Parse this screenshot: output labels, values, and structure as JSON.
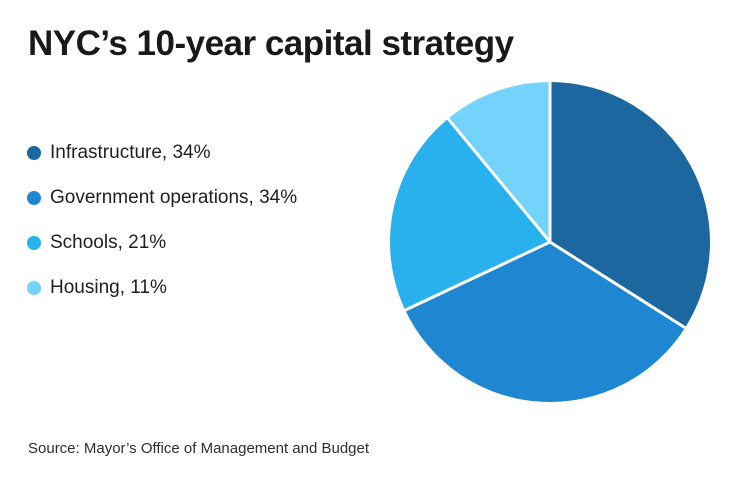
{
  "header": {
    "title": "NYC’s 10-year capital strategy"
  },
  "footer": {
    "source": "Source: Mayor’s Office of Management and Budget"
  },
  "chart_data": {
    "type": "pie",
    "title": "NYC’s 10-year capital strategy",
    "start_angle_deg": 0,
    "direction": "clockwise",
    "legend_position": "left",
    "divider_color": "#ffffff",
    "background_color": "#ffffff",
    "slices": [
      {
        "label": "Infrastructure",
        "value": 34,
        "display": "Infrastructure, 34%",
        "color": "#1D67A0"
      },
      {
        "label": "Government operations",
        "value": 34,
        "display": "Government operations, 34%",
        "color": "#1F86D2"
      },
      {
        "label": "Schools",
        "value": 21,
        "display": "Schools, 21%",
        "color": "#28B1EC"
      },
      {
        "label": "Housing",
        "value": 11,
        "display": "Housing, 11%",
        "color": "#73D3FB"
      }
    ],
    "source": "Source: Mayor’s Office of Management and Budget"
  }
}
